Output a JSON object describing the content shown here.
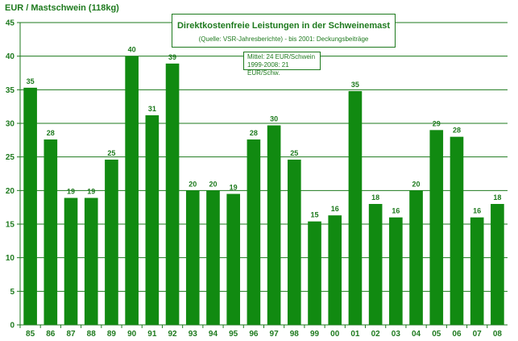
{
  "chart_data": {
    "type": "bar",
    "title": "Direktkostenfreie Leistungen in der Schweinemast",
    "subtitle": "(Quelle: VSR-Jahresberichte) - bis 2001: Deckungsbeiträge",
    "ylabel": "EUR / Mastschwein (118kg)",
    "xlabel": "",
    "ylim": [
      0,
      45
    ],
    "ytick_step": 5,
    "grid": true,
    "categories": [
      "85",
      "86",
      "87",
      "88",
      "89",
      "90",
      "91",
      "92",
      "93",
      "94",
      "95",
      "96",
      "97",
      "98",
      "99",
      "00",
      "01",
      "02",
      "03",
      "04",
      "05",
      "06",
      "07",
      "08"
    ],
    "values": [
      35.3,
      27.6,
      18.9,
      18.9,
      24.6,
      40.0,
      31.2,
      38.9,
      20.0,
      20.0,
      19.5,
      27.6,
      29.7,
      24.6,
      15.4,
      16.3,
      34.8,
      18.0,
      16.0,
      20.0,
      29.0,
      28.0,
      16.0,
      18.0
    ],
    "data_labels": [
      "35",
      "28",
      "19",
      "19",
      "25",
      "40",
      "31",
      "39",
      "20",
      "20",
      "19",
      "28",
      "30",
      "25",
      "15",
      "16",
      "35",
      "18",
      "16",
      "20",
      "29",
      "28",
      "16",
      "18"
    ],
    "annotation": {
      "line1": "Mittel: 24 EUR/Schwein",
      "line2": "1999-2008: 21 EUR/Schw."
    },
    "colors": {
      "bar": "#118a11",
      "text": "#1e7a1e",
      "grid": "#1e7a1e"
    }
  }
}
